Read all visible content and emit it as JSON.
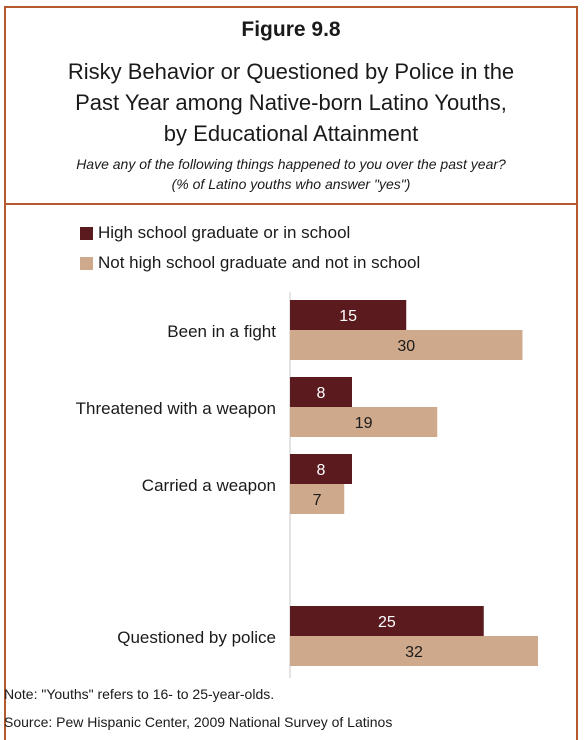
{
  "figure_label": "Figure 9.8",
  "title_lines": [
    "Risky Behavior or Questioned by Police in the",
    "Past Year among Native-born Latino Youths,",
    "by Educational Attainment"
  ],
  "subtitle_lines": [
    "Have any of the following things happened to you over the past year?",
    "(% of Latino youths who answer  \"yes\")"
  ],
  "note": "Note: \"Youths\" refers to 16- to 25-year-olds.",
  "source": "Source: Pew Hispanic Center, 2009 National Survey of Latinos",
  "colors": {
    "series1": "#5a1a1e",
    "series2": "#cfa98b",
    "border": "#b55a2e"
  },
  "chart_data": {
    "type": "bar",
    "orientation": "horizontal",
    "categories": [
      "Been in a fight",
      "Threatened with a weapon",
      "Carried a weapon",
      "Questioned by police"
    ],
    "series": [
      {
        "name": "High school graduate or in school",
        "values": [
          15,
          8,
          8,
          25
        ]
      },
      {
        "name": "Not high school graduate and not in school",
        "values": [
          30,
          19,
          7,
          32
        ]
      }
    ],
    "data_labels": true,
    "legend_position": "top-left",
    "grid": false
  }
}
